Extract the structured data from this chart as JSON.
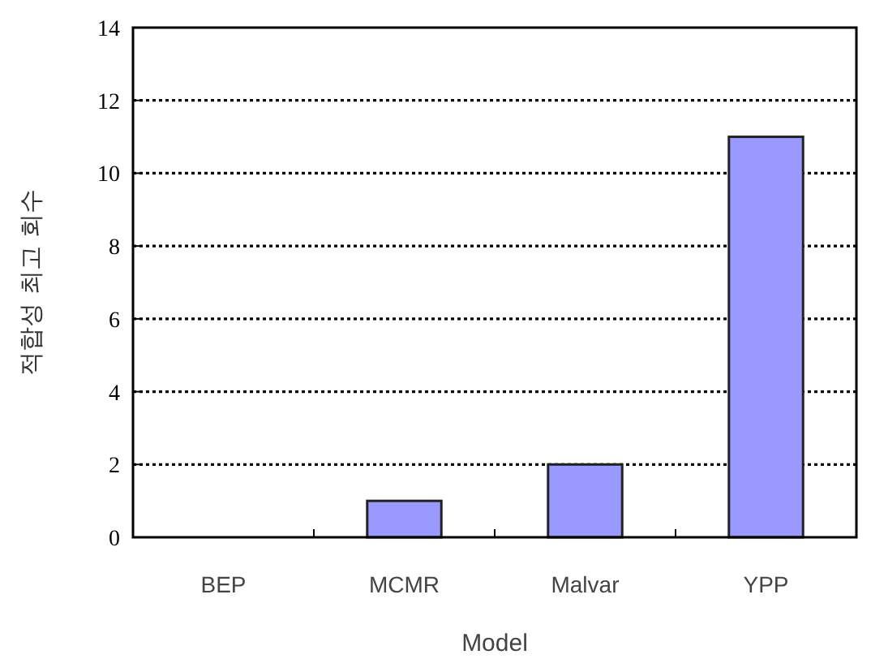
{
  "chart_data": {
    "type": "bar",
    "xlabel": "Model",
    "ylabel": "적합성 최고 회수",
    "categories": [
      "BEP",
      "MCMR",
      "Malvar",
      "YPP"
    ],
    "values": [
      0,
      1,
      2,
      11
    ],
    "color": "#9999ff",
    "ylim": [
      0,
      14
    ],
    "yticks": [
      0,
      2,
      4,
      6,
      8,
      10,
      12,
      14
    ],
    "grid": "y"
  }
}
